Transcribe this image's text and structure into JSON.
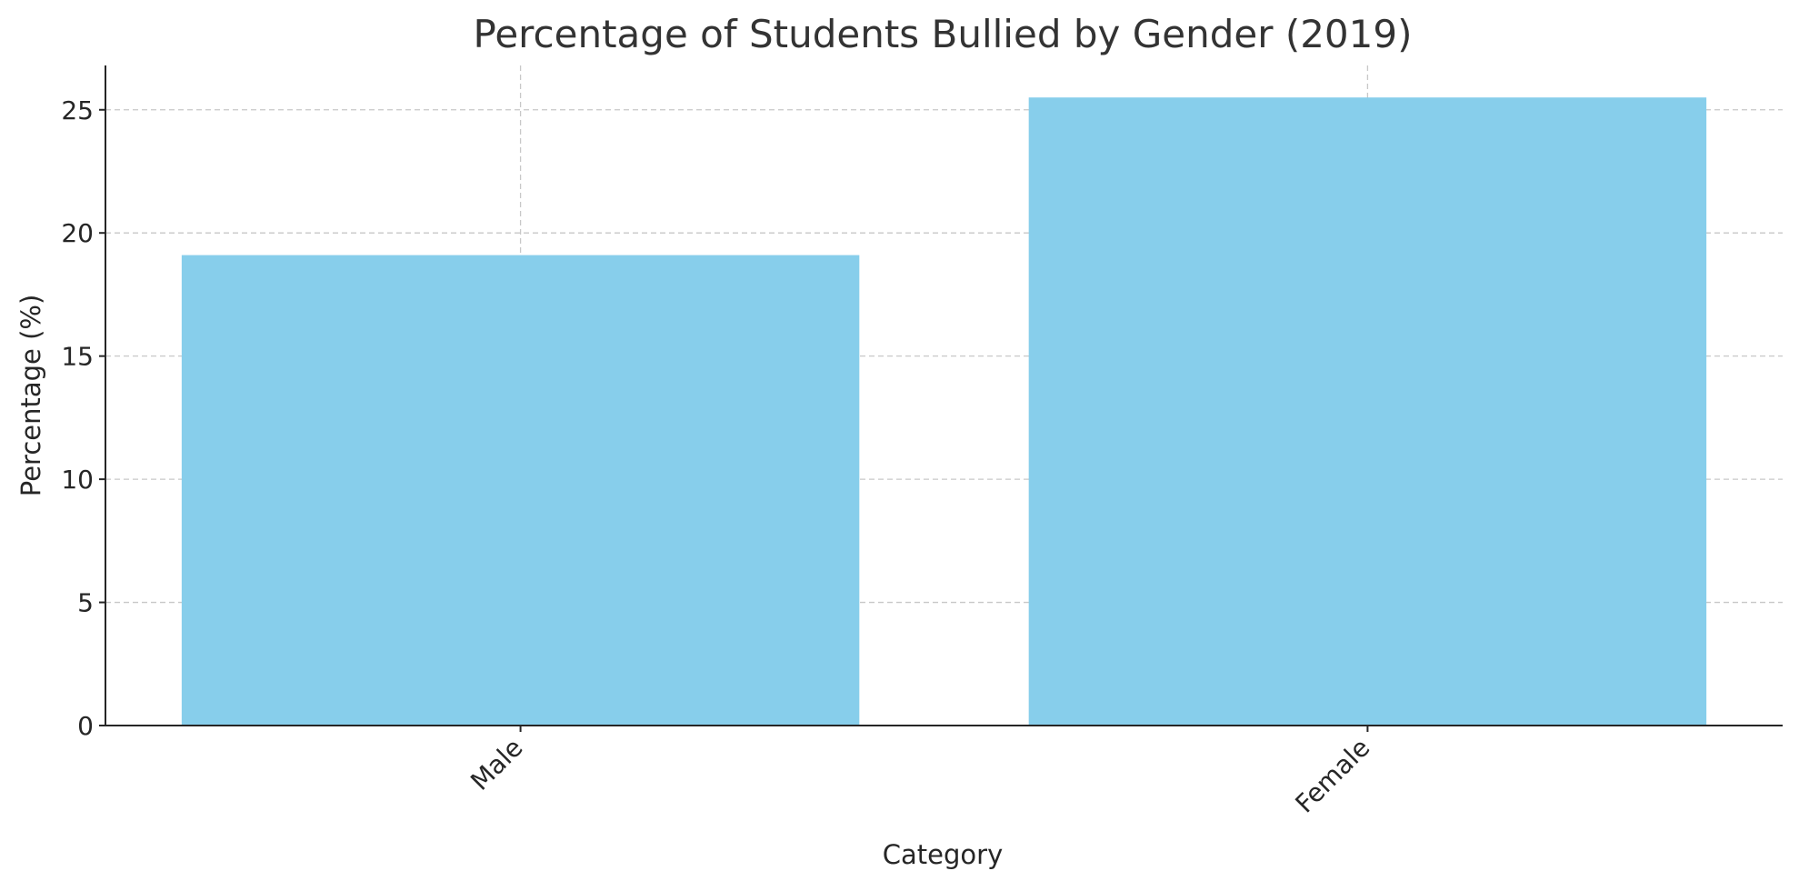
{
  "chart_data": {
    "type": "bar",
    "title": "Percentage of Students Bullied by Gender (2019)",
    "xlabel": "Category",
    "ylabel": "Percentage (%)",
    "categories": [
      "Male",
      "Female"
    ],
    "values": [
      19.1,
      25.5
    ],
    "ylim": [
      0,
      26.8
    ],
    "yticks": [
      0,
      5,
      10,
      15,
      20,
      25
    ],
    "grid": true,
    "bar_color": "#87CEEB",
    "xtick_rotation": 45
  }
}
